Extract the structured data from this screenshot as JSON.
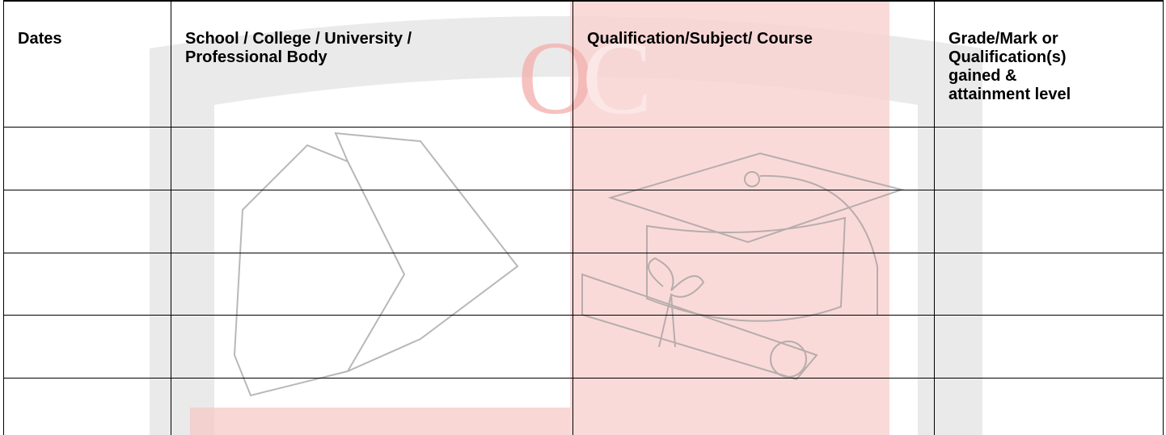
{
  "table": {
    "header": [
      "Dates",
      "School / College / University / Professional Body",
      "Qualification/Subject/ Course",
      "Grade/Mark or Qualification(s) gained & attainment level"
    ]
  }
}
